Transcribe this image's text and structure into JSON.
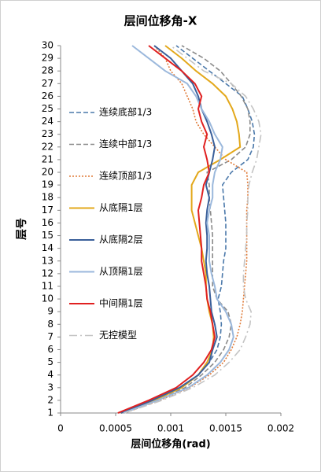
{
  "chart_data": {
    "type": "line",
    "title": "层间位移角-X",
    "xlabel": "层间位移角(rad)",
    "ylabel": "层号",
    "xlim": [
      0,
      0.002
    ],
    "xticks": [
      0,
      0.0005,
      0.001,
      0.0015,
      0.002
    ],
    "ylim": [
      1,
      30
    ],
    "yticks": [
      1,
      2,
      3,
      4,
      5,
      6,
      7,
      8,
      9,
      10,
      11,
      12,
      13,
      14,
      15,
      16,
      17,
      18,
      19,
      20,
      21,
      22,
      23,
      24,
      25,
      26,
      27,
      28,
      29,
      30
    ],
    "y": [
      1,
      2,
      3,
      4,
      5,
      6,
      7,
      8,
      9,
      10,
      11,
      12,
      13,
      14,
      15,
      16,
      17,
      18,
      19,
      20,
      21,
      22,
      23,
      24,
      25,
      26,
      27,
      28,
      29,
      30
    ],
    "series": [
      {
        "name": "连续底部1/3",
        "color": "#4a78aa",
        "style": "dash",
        "values": [
          0.00055,
          0.00085,
          0.0011,
          0.00125,
          0.00135,
          0.00142,
          0.00145,
          0.00146,
          0.00145,
          0.00143,
          0.00146,
          0.00147,
          0.00148,
          0.0015,
          0.0015,
          0.0015,
          0.00149,
          0.00148,
          0.00147,
          0.00155,
          0.0017,
          0.00175,
          0.00176,
          0.00174,
          0.0017,
          0.00165,
          0.0015,
          0.00135,
          0.0012,
          0.00105
        ]
      },
      {
        "name": "连续中部1/3",
        "color": "#8a8a8a",
        "style": "dash",
        "values": [
          0.00057,
          0.00088,
          0.00113,
          0.00128,
          0.0014,
          0.00148,
          0.00153,
          0.00155,
          0.00152,
          0.00142,
          0.00138,
          0.00138,
          0.00138,
          0.00138,
          0.00138,
          0.00137,
          0.00136,
          0.00135,
          0.00135,
          0.00133,
          0.00155,
          0.00168,
          0.00172,
          0.00172,
          0.0017,
          0.00164,
          0.00155,
          0.00145,
          0.0013,
          0.0011
        ]
      },
      {
        "name": "连续顶部1/3",
        "color": "#e07b39",
        "style": "dot",
        "values": [
          0.00058,
          0.0009,
          0.00117,
          0.00135,
          0.00148,
          0.00155,
          0.0016,
          0.00163,
          0.00165,
          0.00166,
          0.00167,
          0.00168,
          0.00169,
          0.00169,
          0.00169,
          0.00169,
          0.00169,
          0.0017,
          0.0017,
          0.00169,
          0.0015,
          0.0014,
          0.0013,
          0.00123,
          0.0012,
          0.00115,
          0.0011,
          0.001,
          0.00095,
          0.00085
        ]
      },
      {
        "name": "从底隔1层",
        "color": "#e3a81b",
        "style": "solid",
        "values": [
          0.00055,
          0.00085,
          0.0011,
          0.00125,
          0.00133,
          0.00138,
          0.00139,
          0.00138,
          0.00135,
          0.00133,
          0.00132,
          0.00132,
          0.0013,
          0.00128,
          0.00125,
          0.00122,
          0.00119,
          0.00119,
          0.00119,
          0.00125,
          0.00145,
          0.00163,
          0.00162,
          0.0016,
          0.00156,
          0.0015,
          0.00138,
          0.00123,
          0.0011,
          0.00095
        ]
      },
      {
        "name": "从底隔2层",
        "color": "#3a5f9a",
        "style": "solid",
        "values": [
          0.00055,
          0.00083,
          0.00108,
          0.00125,
          0.00135,
          0.00138,
          0.00142,
          0.0014,
          0.00137,
          0.00136,
          0.00135,
          0.00133,
          0.00132,
          0.00133,
          0.00133,
          0.00132,
          0.00133,
          0.00135,
          0.00132,
          0.00135,
          0.00138,
          0.0014,
          0.00137,
          0.00133,
          0.00128,
          0.00125,
          0.0012,
          0.0011,
          0.001,
          0.00085
        ]
      },
      {
        "name": "从顶隔1层",
        "color": "#9bb8dc",
        "style": "solid",
        "values": [
          0.00057,
          0.00088,
          0.00116,
          0.00133,
          0.00145,
          0.00153,
          0.00157,
          0.00155,
          0.0015,
          0.00142,
          0.0014,
          0.00137,
          0.00135,
          0.00135,
          0.00135,
          0.00133,
          0.00135,
          0.00138,
          0.00138,
          0.0014,
          0.00145,
          0.00147,
          0.0014,
          0.00135,
          0.00128,
          0.00123,
          0.00115,
          0.00095,
          0.0008,
          0.00065
        ]
      },
      {
        "name": "中间隔1层",
        "color": "#e02020",
        "style": "solid",
        "values": [
          0.00052,
          0.0008,
          0.00105,
          0.0012,
          0.0013,
          0.00137,
          0.0014,
          0.00138,
          0.00136,
          0.00133,
          0.00132,
          0.0013,
          0.00128,
          0.00128,
          0.00127,
          0.00126,
          0.00125,
          0.00128,
          0.0013,
          0.00135,
          0.00133,
          0.0013,
          0.00133,
          0.00128,
          0.00125,
          0.00128,
          0.00122,
          0.0011,
          0.00095,
          0.0008
        ]
      },
      {
        "name": "无控模型",
        "color": "#c4c4c4",
        "style": "dashdot",
        "values": [
          0.00058,
          0.00092,
          0.0012,
          0.0014,
          0.00153,
          0.00163,
          0.00168,
          0.00172,
          0.00173,
          0.00168,
          0.00166,
          0.00166,
          0.00167,
          0.00168,
          0.00169,
          0.00169,
          0.0017,
          0.0017,
          0.00171,
          0.00174,
          0.00178,
          0.0018,
          0.00182,
          0.0018,
          0.00175,
          0.00168,
          0.00155,
          0.0013,
          0.00115,
          0.001
        ]
      }
    ]
  }
}
